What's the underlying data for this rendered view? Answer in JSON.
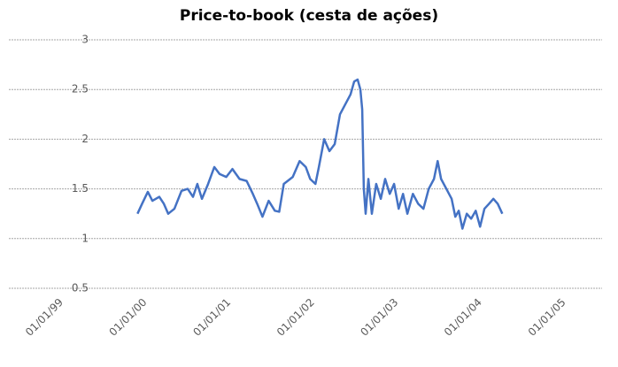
{
  "chart_data": {
    "type": "line",
    "title": "Price-to-book (cesta de ações)",
    "x": [
      "1999-12-14",
      "2000-01-03",
      "2000-01-28",
      "2000-02-17",
      "2000-03-18",
      "2000-04-07",
      "2000-04-26",
      "2000-05-23",
      "2000-06-23",
      "2000-07-20",
      "2000-08-12",
      "2000-08-31",
      "2000-09-20",
      "2000-10-17",
      "2000-11-13",
      "2000-12-06",
      "2001-01-04",
      "2001-01-31",
      "2001-03-03",
      "2001-04-03",
      "2001-04-30",
      "2001-05-19",
      "2001-06-11",
      "2001-07-08",
      "2001-08-04",
      "2001-08-23",
      "2001-09-12",
      "2001-10-21",
      "2001-11-20",
      "2001-12-17",
      "2002-01-05",
      "2002-01-28",
      "2002-02-12",
      "2002-03-07",
      "2002-03-30",
      "2002-04-22",
      "2002-05-15",
      "2002-06-07",
      "2002-06-30",
      "2002-07-16",
      "2002-07-31",
      "2002-08-12",
      "2002-08-20",
      "2002-08-27",
      "2002-09-04",
      "2002-09-16",
      "2002-10-01",
      "2002-10-20",
      "2002-11-09",
      "2002-11-28",
      "2002-12-18",
      "2003-01-06",
      "2003-01-26",
      "2003-02-14",
      "2003-03-05",
      "2003-03-29",
      "2003-04-21",
      "2003-05-14",
      "2003-06-06",
      "2003-06-29",
      "2003-07-15",
      "2003-07-30",
      "2003-08-22",
      "2003-09-14",
      "2003-09-30",
      "2003-10-15",
      "2003-10-31",
      "2003-11-19",
      "2003-12-08",
      "2003-12-28",
      "2004-01-16",
      "2004-02-04",
      "2004-02-24",
      "2004-03-14",
      "2004-04-02",
      "2004-04-22"
    ],
    "series": [
      {
        "name": "Price-to-book",
        "color": "#4472c4",
        "values": [
          1.25,
          1.35,
          1.47,
          1.38,
          1.42,
          1.35,
          1.25,
          1.3,
          1.48,
          1.5,
          1.42,
          1.55,
          1.4,
          1.55,
          1.72,
          1.65,
          1.62,
          1.7,
          1.6,
          1.58,
          1.45,
          1.35,
          1.22,
          1.38,
          1.28,
          1.27,
          1.55,
          1.62,
          1.78,
          1.72,
          1.6,
          1.55,
          1.72,
          2.0,
          1.88,
          1.95,
          2.25,
          2.35,
          2.45,
          2.58,
          2.6,
          2.5,
          2.3,
          1.5,
          1.25,
          1.6,
          1.25,
          1.55,
          1.4,
          1.6,
          1.45,
          1.55,
          1.3,
          1.45,
          1.25,
          1.45,
          1.35,
          1.3,
          1.5,
          1.6,
          1.78,
          1.6,
          1.5,
          1.4,
          1.22,
          1.28,
          1.1,
          1.25,
          1.2,
          1.28,
          1.12,
          1.3,
          1.35,
          1.4,
          1.35,
          1.25
        ]
      }
    ],
    "xlim": [
      "1998-06-01",
      "2005-07-01"
    ],
    "xticks": [
      {
        "value": "1999-01-01",
        "label": "01/01/99"
      },
      {
        "value": "2000-01-01",
        "label": "01/01/00"
      },
      {
        "value": "2001-01-01",
        "label": "01/01/01"
      },
      {
        "value": "2002-01-01",
        "label": "01/01/02"
      },
      {
        "value": "2003-01-01",
        "label": "01/01/03"
      },
      {
        "value": "2004-01-01",
        "label": "01/01/04"
      },
      {
        "value": "2005-01-01",
        "label": "01/01/05"
      }
    ],
    "ylim": [
      0.5,
      3
    ],
    "yticks": [
      0.5,
      1,
      1.5,
      2,
      2.5,
      3
    ],
    "grid": true
  }
}
